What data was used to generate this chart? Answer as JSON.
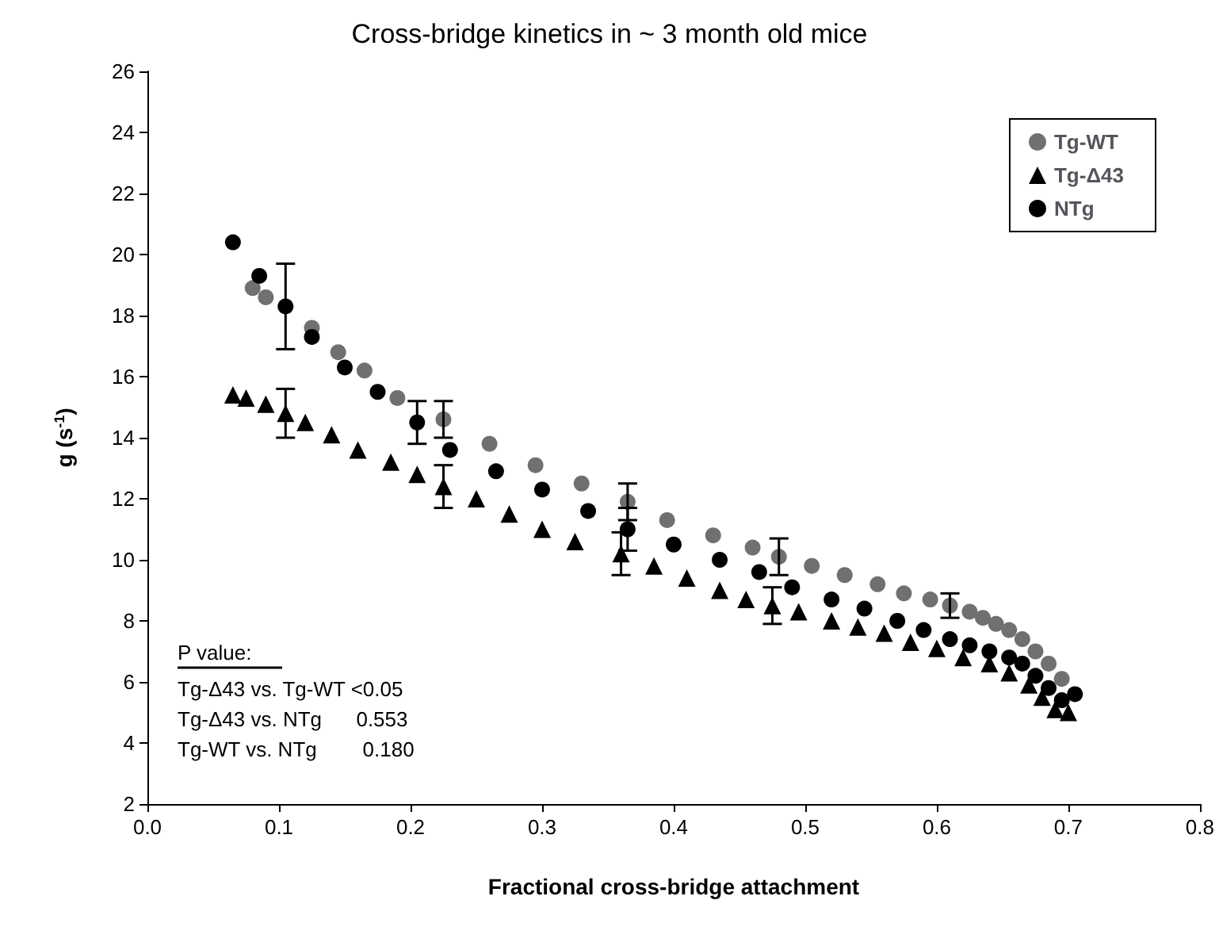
{
  "chart_data": {
    "type": "scatter",
    "title": "Cross-bridge kinetics in ~ 3 month old mice",
    "xlabel": "Fractional cross-bridge attachment",
    "ylabel": "g (s$^{-1}$)",
    "xlim": [
      0,
      0.8
    ],
    "xticks": [
      {
        "value": 0,
        "label": "0.0"
      },
      {
        "value": 0.1,
        "label": "0.1"
      },
      {
        "value": 0.2,
        "label": "0.2"
      },
      {
        "value": 0.3,
        "label": "0.3"
      },
      {
        "value": 0.4,
        "label": "0.4"
      },
      {
        "value": 0.5,
        "label": "0.5"
      },
      {
        "value": 0.6,
        "label": "0.6"
      },
      {
        "value": 0.7,
        "label": "0.7"
      },
      {
        "value": 0.8,
        "label": "0.8"
      }
    ],
    "ylim": [
      2,
      26
    ],
    "yticks": [
      2,
      4,
      6,
      8,
      10,
      12,
      14,
      16,
      18,
      20,
      22,
      24,
      26
    ],
    "grid": false,
    "legend": "top right",
    "annotations": [
      "P value:",
      "Tg-Δ43 vs. Tg-WT <0.05",
      "Tg-Δ43 vs. NTg      0.553",
      "Tg-WT vs. NTg        0.180"
    ],
    "series": [
      {
        "name": "Tg-WT",
        "color": "#707070",
        "marker": "circle",
        "x": [
          0.08,
          0.09,
          0.125,
          0.145,
          0.165,
          0.19,
          0.225,
          0.26,
          0.295,
          0.33,
          0.365,
          0.395,
          0.43,
          0.46,
          0.48,
          0.505,
          0.53,
          0.555,
          0.575,
          0.595,
          0.61,
          0.625,
          0.635,
          0.645,
          0.655,
          0.665,
          0.675,
          0.685,
          0.695
        ],
        "values": [
          18.9,
          18.6,
          17.6,
          16.8,
          16.2,
          15.3,
          14.6,
          13.8,
          13.1,
          12.5,
          11.9,
          11.3,
          10.8,
          10.4,
          10.1,
          9.8,
          9.5,
          9.2,
          8.9,
          8.7,
          8.5,
          8.3,
          8.1,
          7.9,
          7.7,
          7.4,
          7.0,
          6.6,
          6.1
        ],
        "errors": [
          null,
          null,
          null,
          null,
          null,
          null,
          0.6,
          null,
          null,
          null,
          0.6,
          null,
          null,
          null,
          0.6,
          null,
          null,
          null,
          null,
          null,
          0.4,
          null,
          null,
          null,
          null,
          null,
          null,
          null,
          null
        ]
      },
      {
        "name": "Tg-Δ43",
        "color": "#000000",
        "marker": "triangle",
        "x": [
          0.065,
          0.075,
          0.09,
          0.105,
          0.12,
          0.14,
          0.16,
          0.185,
          0.205,
          0.225,
          0.25,
          0.275,
          0.3,
          0.325,
          0.36,
          0.385,
          0.41,
          0.435,
          0.455,
          0.475,
          0.495,
          0.52,
          0.54,
          0.56,
          0.58,
          0.6,
          0.62,
          0.64,
          0.655,
          0.67,
          0.68,
          0.69,
          0.7
        ],
        "values": [
          15.4,
          15.3,
          15.1,
          14.8,
          14.5,
          14.1,
          13.6,
          13.2,
          12.8,
          12.4,
          12.0,
          11.5,
          11.0,
          10.6,
          10.2,
          9.8,
          9.4,
          9.0,
          8.7,
          8.5,
          8.3,
          8.0,
          7.8,
          7.6,
          7.3,
          7.1,
          6.8,
          6.6,
          6.3,
          5.9,
          5.5,
          5.1,
          5.0
        ],
        "errors": [
          null,
          null,
          null,
          0.8,
          null,
          null,
          null,
          null,
          null,
          0.7,
          null,
          null,
          null,
          null,
          0.7,
          null,
          null,
          null,
          null,
          0.6,
          null,
          null,
          null,
          null,
          null,
          null,
          null,
          null,
          null,
          null,
          null,
          null,
          null
        ]
      },
      {
        "name": "NTg",
        "color": "#000000",
        "marker": "circle",
        "x": [
          0.065,
          0.085,
          0.105,
          0.125,
          0.15,
          0.175,
          0.205,
          0.23,
          0.265,
          0.3,
          0.335,
          0.365,
          0.4,
          0.435,
          0.465,
          0.49,
          0.52,
          0.545,
          0.57,
          0.59,
          0.61,
          0.625,
          0.64,
          0.655,
          0.665,
          0.675,
          0.685,
          0.695,
          0.705
        ],
        "values": [
          20.4,
          19.3,
          18.3,
          17.3,
          16.3,
          15.5,
          14.5,
          13.6,
          12.9,
          12.3,
          11.6,
          11.0,
          10.5,
          10.0,
          9.6,
          9.1,
          8.7,
          8.4,
          8.0,
          7.7,
          7.4,
          7.2,
          7.0,
          6.8,
          6.6,
          6.2,
          5.8,
          5.4,
          5.6
        ],
        "errors": [
          null,
          null,
          1.4,
          null,
          null,
          null,
          0.7,
          null,
          null,
          null,
          null,
          0.7,
          null,
          null,
          null,
          null,
          null,
          null,
          null,
          null,
          null,
          null,
          null,
          null,
          null,
          null,
          null,
          null,
          null
        ]
      }
    ]
  }
}
